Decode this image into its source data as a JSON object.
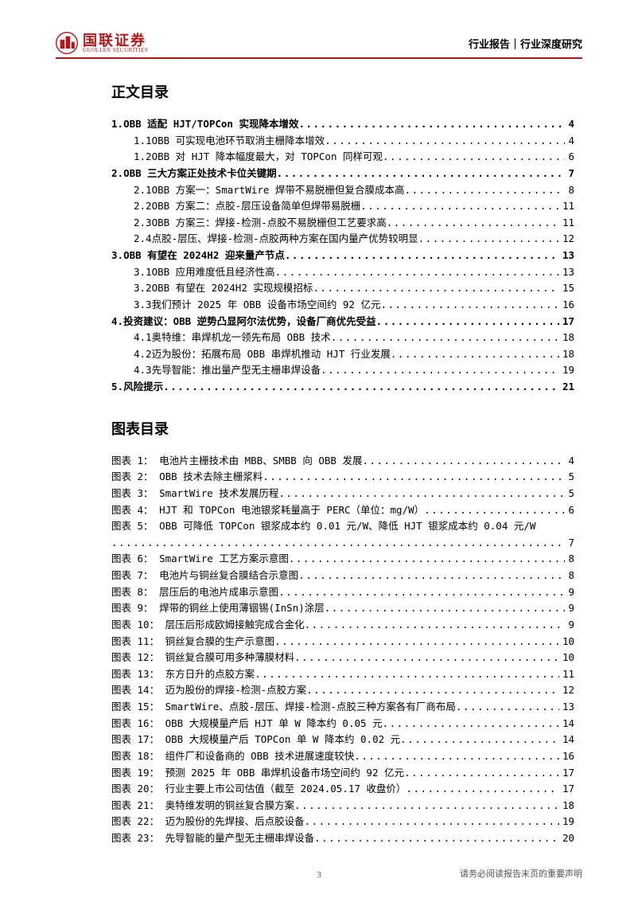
{
  "header": {
    "logo_cn": "国联证券",
    "logo_en": "GUOLIAN SECURITIES",
    "right": "行业报告｜行业深度研究"
  },
  "titles": {
    "toc": "正文目录",
    "figs": "图表目录"
  },
  "toc": [
    {
      "lvl": 0,
      "num": "1.",
      "label": "OBB 适配 HJT/TOPCon 实现降本增效",
      "page": "4"
    },
    {
      "lvl": 1,
      "num": "1.1",
      "label": "OBB 可实现电池环节取消主栅降本增效",
      "page": "4"
    },
    {
      "lvl": 1,
      "num": "1.2",
      "label": "OBB 对 HJT 降本幅度最大，对 TOPCon 同样可观",
      "page": "6"
    },
    {
      "lvl": 0,
      "num": "2.",
      "label": "OBB 三大方案正处技术卡位关键期",
      "page": "7"
    },
    {
      "lvl": 1,
      "num": "2.1",
      "label": "OBB 方案一：SmartWire 焊带不易脱栅但复合膜成本高",
      "page": "8"
    },
    {
      "lvl": 1,
      "num": "2.2",
      "label": "OBB 方案二：点胶-层压设备简单但焊带易脱栅",
      "page": "11"
    },
    {
      "lvl": 1,
      "num": "2.3",
      "label": "OBB 方案三：焊接-检测-点胶不易脱栅但工艺要求高",
      "page": "11"
    },
    {
      "lvl": 1,
      "num": "2.4",
      "label": "点胶-层压、焊接-检测-点胶两种方案在国内量产优势较明显",
      "page": "12"
    },
    {
      "lvl": 0,
      "num": "3.",
      "label": "OBB 有望在 2024H2 迎来量产节点",
      "page": "13"
    },
    {
      "lvl": 1,
      "num": "3.1",
      "label": "OBB 应用难度低且经济性高",
      "page": "13"
    },
    {
      "lvl": 1,
      "num": "3.2",
      "label": "OBB 有望在 2024H2 实现规模招标",
      "page": "15"
    },
    {
      "lvl": 1,
      "num": "3.3",
      "label": "我们预计 2025 年 OBB 设备市场空间约 92 亿元",
      "page": "16"
    },
    {
      "lvl": 0,
      "num": "4.",
      "label": "投资建议：OBB 逆势凸显阿尔法优势，设备厂商优先受益",
      "page": "17"
    },
    {
      "lvl": 1,
      "num": "4.1",
      "label": "奥特维：串焊机龙一领先布局 OBB 技术",
      "page": "18"
    },
    {
      "lvl": 1,
      "num": "4.2",
      "label": "迈为股份：拓展布局 OBB 串焊机推动 HJT 行业发展",
      "page": "18"
    },
    {
      "lvl": 1,
      "num": "4.3",
      "label": "先导智能：推出量产型无主栅串焊设备",
      "page": "19"
    },
    {
      "lvl": 0,
      "num": "5.",
      "label": "风险提示",
      "page": "21"
    }
  ],
  "figs": [
    {
      "num": "图表 1：",
      "label": "电池片主栅技术由 MBB、SMBB 向 OBB 发展",
      "page": "4"
    },
    {
      "num": "图表 2：",
      "label": "OBB 技术去除主栅浆料",
      "page": "5"
    },
    {
      "num": "图表 3：",
      "label": "SmartWire 技术发展历程",
      "page": "5"
    },
    {
      "num": "图表 4：",
      "label": "HJT 和 TOPCon 电池银浆耗量高于 PERC（单位：mg/W）",
      "page": "6"
    },
    {
      "num": "图表 5：",
      "label": "OBB 可降低 TOPCon 银浆成本约 0.01 元/W、降低 HJT 银浆成本约 0.04 元/W",
      "page": "7",
      "nowrap": true
    },
    {
      "num": "图表 6：",
      "label": "SmartWire 工艺方案示意图",
      "page": "8"
    },
    {
      "num": "图表 7：",
      "label": "电池片与铜丝复合膜结合示意图",
      "page": "8"
    },
    {
      "num": "图表 8：",
      "label": "层压后的电池片成串示意图",
      "page": "9"
    },
    {
      "num": "图表 9：",
      "label": "焊带的铜丝上使用薄铟锡(InSn)涂层",
      "page": "9"
    },
    {
      "num": "图表 10：",
      "label": "层压后形成欧姆接触完成合金化",
      "page": "9"
    },
    {
      "num": "图表 11：",
      "label": "铜丝复合膜的生产示意图",
      "page": "10"
    },
    {
      "num": "图表 12：",
      "label": "铜丝复合膜可用多种薄膜材料",
      "page": "10"
    },
    {
      "num": "图表 13：",
      "label": "东方日升的点胶方案",
      "page": "11"
    },
    {
      "num": "图表 14：",
      "label": "迈为股份的焊接-检测-点胶方案",
      "page": "12"
    },
    {
      "num": "图表 15：",
      "label": "SmartWire、点胶-层压、焊接-检测-点胶三种方案各有厂商布局",
      "page": "13"
    },
    {
      "num": "图表 16：",
      "label": "OBB 大规模量产后 HJT 单 W 降本约 0.05 元",
      "page": "14"
    },
    {
      "num": "图表 17：",
      "label": "OBB 大规模量产后 TOPCon 单 W 降本约 0.02 元",
      "page": "14"
    },
    {
      "num": "图表 18：",
      "label": "组件厂和设备商的 OBB 技术进展速度较快",
      "page": "16"
    },
    {
      "num": "图表 19：",
      "label": "预测 2025 年 OBB 串焊机设备市场空间约 92 亿元",
      "page": "17"
    },
    {
      "num": "图表 20：",
      "label": "行业主要上市公司估值（截至 2024.05.17 收盘价）",
      "page": "17"
    },
    {
      "num": "图表 21：",
      "label": "奥特维发明的铜丝复合膜方案",
      "page": "18"
    },
    {
      "num": "图表 22：",
      "label": "迈为股份的先焊接、后点胶设备",
      "page": "19"
    },
    {
      "num": "图表 23：",
      "label": "先导智能的量产型无主栅串焊设备",
      "page": "20"
    }
  ],
  "footer": {
    "page_num": "3",
    "disclaimer": "请务必阅读报告末页的重要声明"
  }
}
